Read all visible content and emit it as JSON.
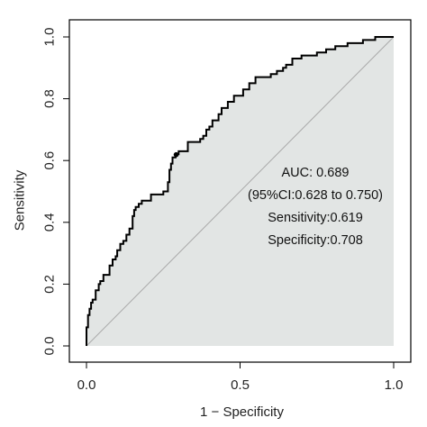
{
  "chart_data": {
    "type": "line",
    "xlabel": "1 − Specificity",
    "ylabel": "Sensitivity",
    "xlim": [
      0,
      1
    ],
    "ylim": [
      0,
      1
    ],
    "x_ticks": [
      "0.0",
      "0.5",
      "1.0"
    ],
    "y_ticks": [
      "0.0",
      "0.2",
      "0.4",
      "0.6",
      "0.8",
      "1.0"
    ],
    "grid": false,
    "colors": {
      "roc_line": "#000000",
      "auc_fill": "#e2e5e4",
      "diagonal": "#a8a8a8",
      "frame": "#000000"
    },
    "series": [
      {
        "x": [
          0.0,
          0.0,
          0.005,
          0.005,
          0.01,
          0.01,
          0.015,
          0.015,
          0.02,
          0.02,
          0.03,
          0.03,
          0.04,
          0.04,
          0.045,
          0.045,
          0.055,
          0.055,
          0.075,
          0.075,
          0.085,
          0.085,
          0.095,
          0.095,
          0.1,
          0.1,
          0.11,
          0.11,
          0.12,
          0.12,
          0.13,
          0.13,
          0.14,
          0.14,
          0.15,
          0.15,
          0.155,
          0.155,
          0.16,
          0.16,
          0.17,
          0.17,
          0.18,
          0.18,
          0.21,
          0.21,
          0.25,
          0.25,
          0.265,
          0.265,
          0.27,
          0.27,
          0.275,
          0.275,
          0.28,
          0.28,
          0.29,
          0.29,
          0.3,
          0.3,
          0.33,
          0.33,
          0.37,
          0.37,
          0.38,
          0.38,
          0.39,
          0.39,
          0.4,
          0.4,
          0.41,
          0.41,
          0.43,
          0.43,
          0.44,
          0.44,
          0.46,
          0.46,
          0.48,
          0.48,
          0.5,
          0.5,
          0.51,
          0.51,
          0.53,
          0.53,
          0.55,
          0.55,
          0.6,
          0.6,
          0.62,
          0.62,
          0.64,
          0.64,
          0.65,
          0.65,
          0.67,
          0.67,
          0.7,
          0.7,
          0.75,
          0.75,
          0.78,
          0.78,
          0.81,
          0.81,
          0.85,
          0.85,
          0.9,
          0.9,
          0.94,
          0.94,
          0.96,
          0.96,
          1.0
        ],
        "y": [
          0.0,
          0.06,
          0.06,
          0.1,
          0.1,
          0.12,
          0.12,
          0.14,
          0.14,
          0.15,
          0.15,
          0.18,
          0.18,
          0.2,
          0.2,
          0.21,
          0.21,
          0.23,
          0.23,
          0.26,
          0.26,
          0.28,
          0.28,
          0.29,
          0.29,
          0.31,
          0.31,
          0.33,
          0.33,
          0.34,
          0.34,
          0.36,
          0.36,
          0.38,
          0.38,
          0.42,
          0.42,
          0.44,
          0.44,
          0.45,
          0.45,
          0.46,
          0.46,
          0.47,
          0.47,
          0.49,
          0.49,
          0.5,
          0.5,
          0.53,
          0.53,
          0.57,
          0.57,
          0.59,
          0.59,
          0.61,
          0.61,
          0.62,
          0.62,
          0.63,
          0.63,
          0.66,
          0.66,
          0.67,
          0.67,
          0.68,
          0.68,
          0.7,
          0.7,
          0.71,
          0.71,
          0.73,
          0.73,
          0.75,
          0.75,
          0.77,
          0.77,
          0.79,
          0.79,
          0.81,
          0.81,
          0.81,
          0.81,
          0.83,
          0.83,
          0.85,
          0.85,
          0.87,
          0.87,
          0.88,
          0.88,
          0.89,
          0.89,
          0.9,
          0.9,
          0.91,
          0.91,
          0.93,
          0.93,
          0.94,
          0.94,
          0.95,
          0.95,
          0.96,
          0.96,
          0.97,
          0.97,
          0.98,
          0.98,
          0.99,
          0.99,
          1.0,
          1.0,
          1.0,
          1.0
        ]
      }
    ],
    "diagonal": {
      "x": [
        0,
        1
      ],
      "y": [
        0,
        1
      ]
    },
    "optimal_point": {
      "x": 0.292,
      "y": 0.619
    },
    "annotations": [
      "AUC: 0.689",
      "(95%CI:0.628 to 0.750)",
      "Sensitivity:0.619",
      "Specificity:0.708"
    ]
  }
}
